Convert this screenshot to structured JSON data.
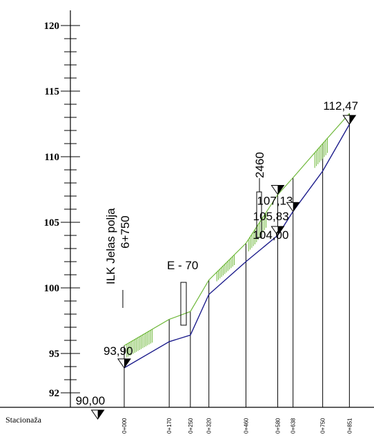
{
  "chart_data": {
    "type": "line",
    "title": "",
    "xlabel": "Stacionaža",
    "ylabel": "",
    "ylim": [
      91.5,
      120
    ],
    "y_tick_labels": [
      {
        "value": 120,
        "label": "120"
      },
      {
        "value": 115,
        "label": "115"
      },
      {
        "value": 110,
        "label": "110"
      },
      {
        "value": 105,
        "label": "105"
      },
      {
        "value": 100,
        "label": "100"
      },
      {
        "value": 95,
        "label": "95"
      },
      {
        "value": 92,
        "label": "92"
      }
    ],
    "stations": [
      {
        "label": "0+000",
        "chainage": 0
      },
      {
        "label": "0+170",
        "chainage": 170
      },
      {
        "label": "0+250",
        "chainage": 250
      },
      {
        "label": "0+320",
        "chainage": 320
      },
      {
        "label": "0+460",
        "chainage": 460
      },
      {
        "label": "0+580",
        "chainage": 580
      },
      {
        "label": "0+638",
        "chainage": 638
      },
      {
        "label": "0+750",
        "chainage": 750
      },
      {
        "label": "0+851",
        "chainage": 851
      }
    ],
    "series": [
      {
        "color": "#6fb83a",
        "points": [
          [
            0,
            95.6
          ],
          [
            170,
            97.6
          ],
          [
            250,
            98.2
          ],
          [
            320,
            100.6
          ],
          [
            460,
            103.4
          ],
          [
            580,
            107.1
          ],
          [
            638,
            108.4
          ],
          [
            750,
            111.0
          ],
          [
            851,
            113.3
          ]
        ]
      },
      {
        "color": "#1d1d8c",
        "points": [
          [
            0,
            93.9
          ],
          [
            170,
            95.9
          ],
          [
            250,
            96.4
          ],
          [
            320,
            99.5
          ],
          [
            460,
            102.0
          ],
          [
            580,
            104.0
          ],
          [
            638,
            105.83
          ],
          [
            750,
            108.9
          ],
          [
            851,
            112.47
          ]
        ]
      }
    ],
    "elevation_markers": [
      {
        "label": "93,90",
        "chainage": 0,
        "value": 93.9
      },
      {
        "label": "90,00",
        "chainage": -100,
        "value": 90.0
      },
      {
        "label": "107,13",
        "chainage": 580,
        "value": 107.13
      },
      {
        "label": "105,83",
        "chainage": 638,
        "value": 105.83
      },
      {
        "label": "104,00",
        "chainage": 580,
        "value": 104.0
      },
      {
        "label": "112,47",
        "chainage": 851,
        "value": 112.47
      }
    ],
    "annotations": [
      {
        "text": "E - 70",
        "chainage": 250
      },
      {
        "text": "2460",
        "chainage": 520
      },
      {
        "text": "ILK Jelas polja",
        "chainage": -20
      },
      {
        "text": "6+750",
        "chainage": -20
      }
    ],
    "colors": {
      "ground": "#6fb83a",
      "design": "#1d1d8c",
      "hatch": "#6fb83a"
    }
  }
}
